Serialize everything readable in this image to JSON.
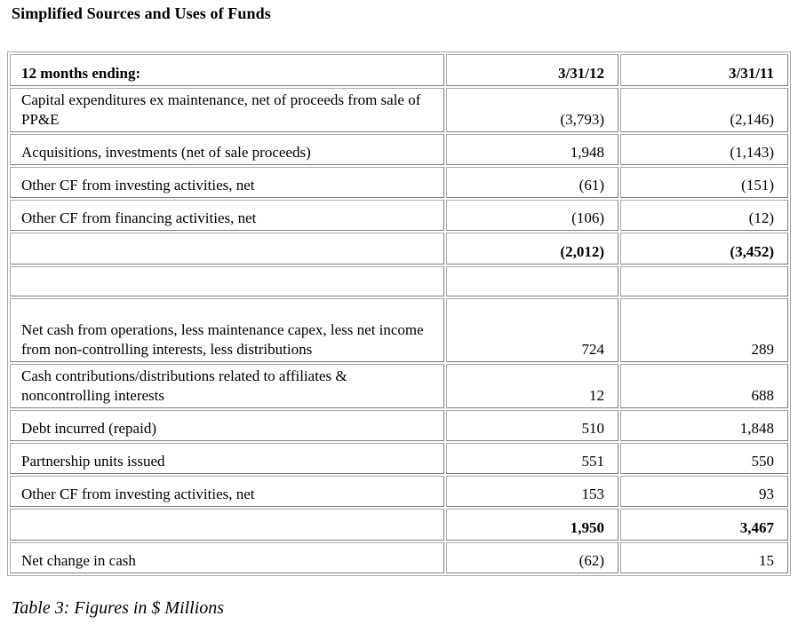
{
  "title": "Simplified Sources and Uses of Funds",
  "table": {
    "header": {
      "label": "12 months ending:",
      "col1": "3/31/12",
      "col2": "3/31/11"
    },
    "rows": [
      {
        "label": "Capital expenditures ex maintenance, net of proceeds from sale of PP&E",
        "v1": "(3,793)",
        "v2": "(2,146)"
      },
      {
        "label": "Acquisitions, investments (net of sale proceeds)",
        "v1": "1,948",
        "v2": "(1,143)"
      },
      {
        "label": "Other CF from investing activities, net",
        "v1": "(61)",
        "v2": "(151)"
      },
      {
        "label": "Other CF from financing activities, net",
        "v1": "(106)",
        "v2": "(12)"
      },
      {
        "label": "",
        "v1": "(2,012)",
        "v2": "(3,452)"
      },
      {
        "label": "",
        "v1": "",
        "v2": ""
      },
      {
        "label": "Net cash from operations, less maintenance capex, less net income from non-controlling interests, less distributions",
        "v1": "724",
        "v2": "289"
      },
      {
        "label": "Cash contributions/distributions related to affiliates & noncontrolling interests",
        "v1": "12",
        "v2": "688"
      },
      {
        "label": "Debt incurred (repaid)",
        "v1": "510",
        "v2": "1,848"
      },
      {
        "label": "Partnership units  issued",
        "v1": "551",
        "v2": "550"
      },
      {
        "label": "Other CF from investing activities, net",
        "v1": "153",
        "v2": "93"
      },
      {
        "label": "",
        "v1": "1,950",
        "v2": "3,467"
      },
      {
        "label": "Net change in cash",
        "v1": "(62)",
        "v2": "15"
      }
    ]
  },
  "caption": "Table 3: Figures in $ Millions"
}
